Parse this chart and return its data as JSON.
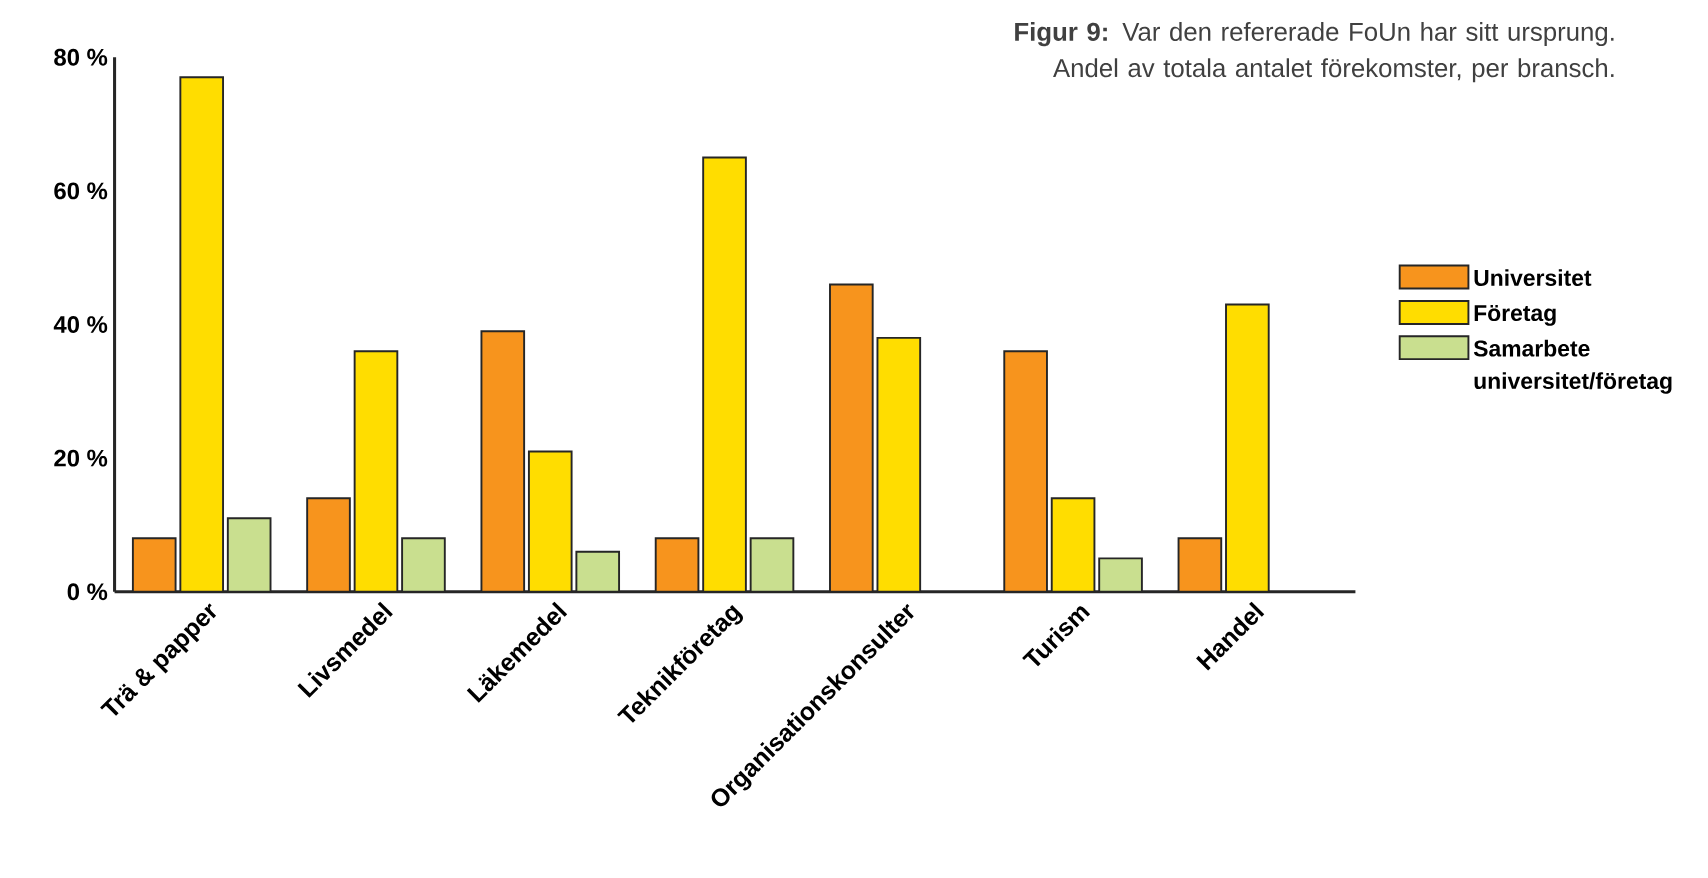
{
  "chart_data": {
    "type": "bar",
    "title": "**Figur 9:** Var den refererade FoUn har sitt ursprung. Andel av totala antalet förekomster, per bransch.",
    "categories": [
      "Trä & papper",
      "Livsmedel",
      "Läkemedel",
      "Teknikföretag",
      "Organisationskonsulter",
      "Turism",
      "Handel"
    ],
    "series": [
      {
        "name": "Universitet",
        "color": "#f7941d",
        "values": [
          8,
          14,
          39,
          8,
          46,
          36,
          8
        ]
      },
      {
        "name": "Företag",
        "color": "#ffdd00",
        "values": [
          77,
          36,
          21,
          65,
          38,
          14,
          43
        ]
      },
      {
        "name": "Samarbete universitet/företag",
        "color": "#c9df8f",
        "values": [
          11,
          8,
          6,
          8,
          null,
          5,
          null
        ]
      }
    ],
    "ylim": [
      0,
      80
    ],
    "yticks": [
      {
        "value": 0,
        "label": "0 %"
      },
      {
        "value": 20,
        "label": "20 %"
      },
      {
        "value": 40,
        "label": "40 %"
      },
      {
        "value": 60,
        "label": "60 %"
      },
      {
        "value": 80,
        "label": "80 %"
      }
    ],
    "legend": "right",
    "grid": false
  }
}
